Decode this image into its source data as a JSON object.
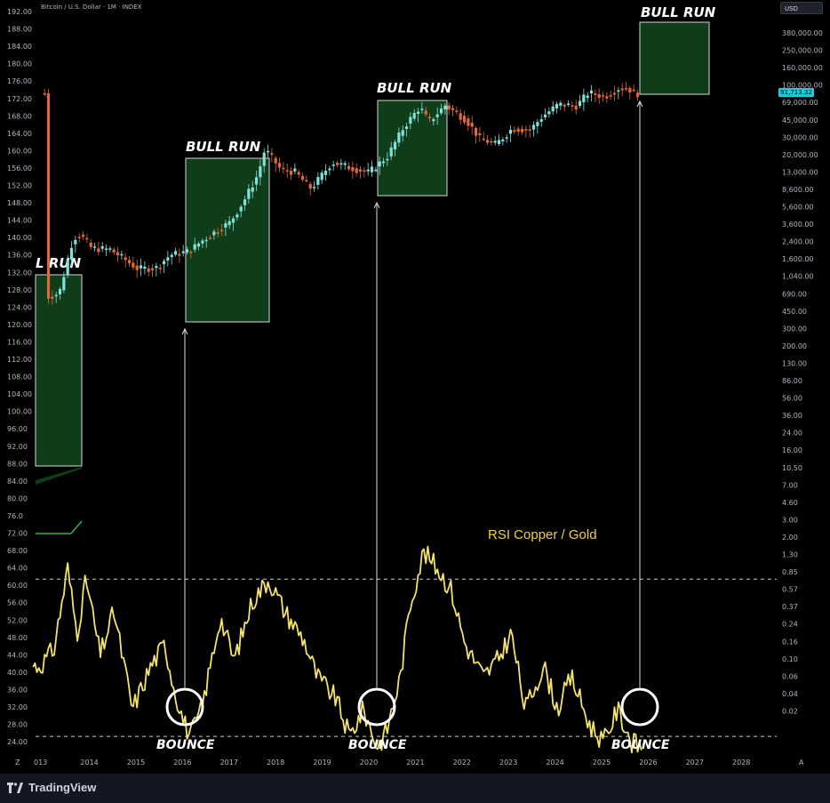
{
  "symbol_title": "Bitcoin / U.S. Dollar · 1M · INDEX",
  "currency": "USD",
  "last_price": "91,713.32",
  "brand": "TradingView",
  "rsi_title": "RSI Copper / Gold",
  "annotations": {
    "bull_run_label": "BULL RUN",
    "partial_bull_label": "L RUN",
    "bounce_label": "BOUNCE"
  },
  "colors": {
    "background": "#000000",
    "bull_box_fill": "#0f3d1a",
    "bull_box_border": "#d9d9d9",
    "candle_up": "#7fe3dc",
    "candle_down": "#e0693b",
    "rsi_line": "#f4e36b",
    "dashed_line": "#cccccc"
  },
  "chart_data": {
    "type": "line",
    "x_ticks": [
      "013",
      "2014",
      "2015",
      "2016",
      "2017",
      "2018",
      "2019",
      "2020",
      "2021",
      "2022",
      "2023",
      "2024",
      "2025",
      "2026",
      "2027",
      "2028"
    ],
    "left_axis_ticks": [
      "192.00",
      "188.00",
      "184.00",
      "180.00",
      "176.00",
      "172.00",
      "168.00",
      "164.00",
      "160.00",
      "156.00",
      "152.00",
      "148.00",
      "144.00",
      "140.00",
      "136.00",
      "132.00",
      "128.00",
      "124.00",
      "120.00",
      "116.00",
      "112.00",
      "108.00",
      "104.00",
      "100.00",
      "96.00",
      "92.00",
      "88.00",
      "84.00",
      "80.00",
      "76.0",
      "72.00",
      "68.00",
      "64.00",
      "60.00",
      "56.00",
      "52.00",
      "48.00",
      "44.00",
      "40.00",
      "36.00",
      "32.00",
      "28.00",
      "24.00"
    ],
    "right_axis_ticks": [
      "380,000.00",
      "250,000.00",
      "160,000.00",
      "100,000.00",
      "69,000.00",
      "45,000.00",
      "30,000.00",
      "20,000.00",
      "13,000.00",
      "8,600.00",
      "5,600.00",
      "3,600.00",
      "2,400.00",
      "1,600.00",
      "1,040.00",
      "690.00",
      "450.00",
      "300.00",
      "200.00",
      "130.00",
      "86.00",
      "56.00",
      "36.00",
      "24.00",
      "16.00",
      "10.50",
      "7.00",
      "4.60",
      "3.00",
      "2.00",
      "1.30",
      "0.85",
      "0.57",
      "0.37",
      "0.24",
      "0.16",
      "0.10",
      "0.06",
      "0.04",
      "0.02"
    ],
    "btc_monthly_approx": [
      [
        2013.2,
        95
      ],
      [
        2013.5,
        110
      ],
      [
        2013.8,
        700
      ],
      [
        2013.95,
        800
      ],
      [
        2014.2,
        500
      ],
      [
        2014.6,
        480
      ],
      [
        2014.9,
        350
      ],
      [
        2015.2,
        250
      ],
      [
        2015.6,
        260
      ],
      [
        2015.9,
        400
      ],
      [
        2016.3,
        450
      ],
      [
        2016.6,
        650
      ],
      [
        2016.9,
        900
      ],
      [
        2017.2,
        1200
      ],
      [
        2017.5,
        2500
      ],
      [
        2017.8,
        6000
      ],
      [
        2017.95,
        14000
      ],
      [
        2018.3,
        7000
      ],
      [
        2018.6,
        6500
      ],
      [
        2018.95,
        3700
      ],
      [
        2019.4,
        9000
      ],
      [
        2019.9,
        7200
      ],
      [
        2020.2,
        6400
      ],
      [
        2020.6,
        11000
      ],
      [
        2020.95,
        29000
      ],
      [
        2021.3,
        58000
      ],
      [
        2021.5,
        35000
      ],
      [
        2021.85,
        61000
      ],
      [
        2022.3,
        38000
      ],
      [
        2022.6,
        20000
      ],
      [
        2022.95,
        16500
      ],
      [
        2023.3,
        28000
      ],
      [
        2023.7,
        27000
      ],
      [
        2023.95,
        42000
      ],
      [
        2024.3,
        63000
      ],
      [
        2024.7,
        60000
      ],
      [
        2024.95,
        94000
      ],
      [
        2025.3,
        82000
      ],
      [
        2025.6,
        108000
      ],
      [
        2025.8,
        110000
      ],
      [
        2025.95,
        91713
      ]
    ],
    "rsi_approx": [
      [
        2013.0,
        46
      ],
      [
        2013.3,
        49
      ],
      [
        2013.6,
        64
      ],
      [
        2013.8,
        52
      ],
      [
        2014.0,
        62
      ],
      [
        2014.3,
        48
      ],
      [
        2014.6,
        56
      ],
      [
        2015.0,
        38
      ],
      [
        2015.4,
        46
      ],
      [
        2015.7,
        50
      ],
      [
        2015.9,
        42
      ],
      [
        2016.1,
        36
      ],
      [
        2016.25,
        33
      ],
      [
        2016.5,
        38
      ],
      [
        2016.9,
        55
      ],
      [
        2017.2,
        47
      ],
      [
        2017.6,
        58
      ],
      [
        2017.95,
        62
      ],
      [
        2018.3,
        56
      ],
      [
        2018.7,
        51
      ],
      [
        2019.0,
        44
      ],
      [
        2019.4,
        40
      ],
      [
        2019.7,
        33
      ],
      [
        2020.0,
        38
      ],
      [
        2020.3,
        31
      ],
      [
        2020.5,
        34
      ],
      [
        2020.8,
        44
      ],
      [
        2021.0,
        57
      ],
      [
        2021.3,
        67
      ],
      [
        2021.6,
        64
      ],
      [
        2021.9,
        60
      ],
      [
        2022.2,
        50
      ],
      [
        2022.6,
        44
      ],
      [
        2022.9,
        47
      ],
      [
        2023.2,
        52
      ],
      [
        2023.5,
        38
      ],
      [
        2023.9,
        46
      ],
      [
        2024.2,
        38
      ],
      [
        2024.5,
        44
      ],
      [
        2024.9,
        35
      ],
      [
        2025.2,
        32
      ],
      [
        2025.5,
        38
      ],
      [
        2025.8,
        32
      ],
      [
        2026.0,
        31
      ]
    ],
    "rsi_upper_dashed": 62,
    "rsi_lower_dashed": 33,
    "bull_runs": [
      {
        "label": "L RUN",
        "start": 2013.0,
        "end": 2013.9
      },
      {
        "label": "BULL RUN",
        "start": 2016.15,
        "end": 2017.97
      },
      {
        "label": "BULL RUN",
        "start": 2020.35,
        "end": 2021.8
      },
      {
        "label": "BULL RUN",
        "start": 2026.0,
        "end": 2027.5
      }
    ],
    "bounces": [
      2016.2,
      2020.35,
      2026.0
    ]
  }
}
